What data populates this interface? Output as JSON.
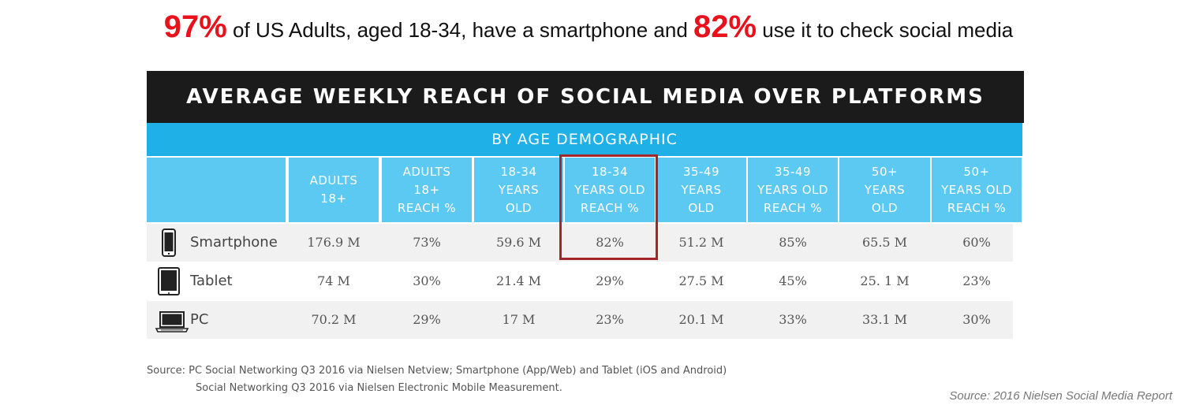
{
  "headline": {
    "pct1": "97%",
    "text1": " of US Adults, aged 18-34, have a smartphone and ",
    "pct2": "82%",
    "text2": " use it to check social media"
  },
  "colors": {
    "accent_red": "#e8121c",
    "title_bar": "#1b1b1b",
    "subtitle_bar": "#1fb0e8",
    "header_cells": "#5cc9f2",
    "highlight_border": "#a3262b"
  },
  "chart_data": {
    "type": "table",
    "title": "AVERAGE WEEKLY REACH OF SOCIAL MEDIA OVER PLATFORMS",
    "subtitle": "BY AGE DEMOGRAPHIC",
    "columns": [
      "ADULTS\n18+",
      "ADULTS\n18+\nREACH %",
      "18-34\nYEARS\nOLD",
      "18-34\nYEARS OLD\nREACH %",
      "35-49\nYEARS\nOLD",
      "35-49\nYEARS OLD\nREACH %",
      "50+\nYEARS\nOLD",
      "50+\nYEARS OLD\nREACH %"
    ],
    "rows": [
      {
        "device": "Smartphone",
        "icon": "smartphone-icon",
        "values": [
          "176.9 M",
          "73%",
          "59.6 M",
          "82%",
          "51.2 M",
          "85%",
          "65.5 M",
          "60%"
        ]
      },
      {
        "device": "Tablet",
        "icon": "tablet-icon",
        "values": [
          "74 M",
          "30%",
          "21.4 M",
          "29%",
          "27.5 M",
          "45%",
          "25. 1 M",
          "23%"
        ]
      },
      {
        "device": "PC",
        "icon": "laptop-icon",
        "values": [
          "70.2 M",
          "29%",
          "17 M",
          "23%",
          "20.1 M",
          "33%",
          "33.1 M",
          "30%"
        ]
      }
    ],
    "highlighted_column": "18-34\nYEARS OLD\nREACH %"
  },
  "source": {
    "line1": "Source: PC Social Networking Q3 2016 via Nielsen Netview; Smartphone (App/Web) and Tablet (iOS and Android)",
    "line2": "Social Networking Q3 2016 via Nielsen Electronic Mobile Measurement.",
    "credit": "Source:  2016 Nielsen Social Media Report"
  }
}
